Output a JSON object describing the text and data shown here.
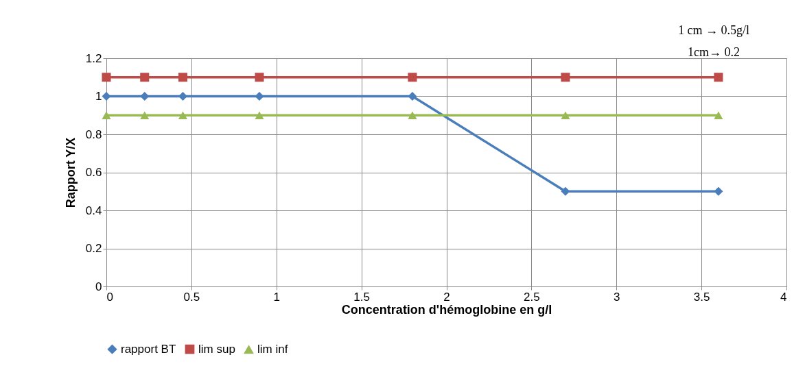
{
  "chart_data": {
    "type": "line",
    "xlabel": "Concentration d'hémoglobine en g/l",
    "ylabel": "Rapport Y/X",
    "x": [
      0,
      0.225,
      0.45,
      0.9,
      1.8,
      2.7,
      3.6
    ],
    "series": [
      {
        "name": "rapport BT",
        "color": "#4a7ebb",
        "marker": "diamond",
        "values": [
          1,
          1,
          1,
          1,
          1,
          0.5,
          0.5
        ]
      },
      {
        "name": "lim sup",
        "color": "#be4b48",
        "marker": "square",
        "values": [
          1.1,
          1.1,
          1.1,
          1.1,
          1.1,
          1.1,
          1.1
        ]
      },
      {
        "name": "lim inf",
        "color": "#98b954",
        "marker": "triangle",
        "values": [
          0.9,
          0.9,
          0.9,
          0.9,
          0.9,
          0.9,
          0.9
        ]
      }
    ],
    "xlim": [
      0,
      4
    ],
    "xticks": [
      0,
      0.5,
      1,
      1.5,
      2,
      2.5,
      3,
      3.5,
      4
    ],
    "ylim": [
      0,
      1.2
    ],
    "yticks": [
      0,
      0.2,
      0.4,
      0.6,
      0.8,
      1,
      1.2
    ],
    "grid": true,
    "legend": "bottom",
    "line_style": "solid",
    "annotations": [
      "1 cm → 0.5g/l",
      "1cm→  0.2"
    ]
  }
}
